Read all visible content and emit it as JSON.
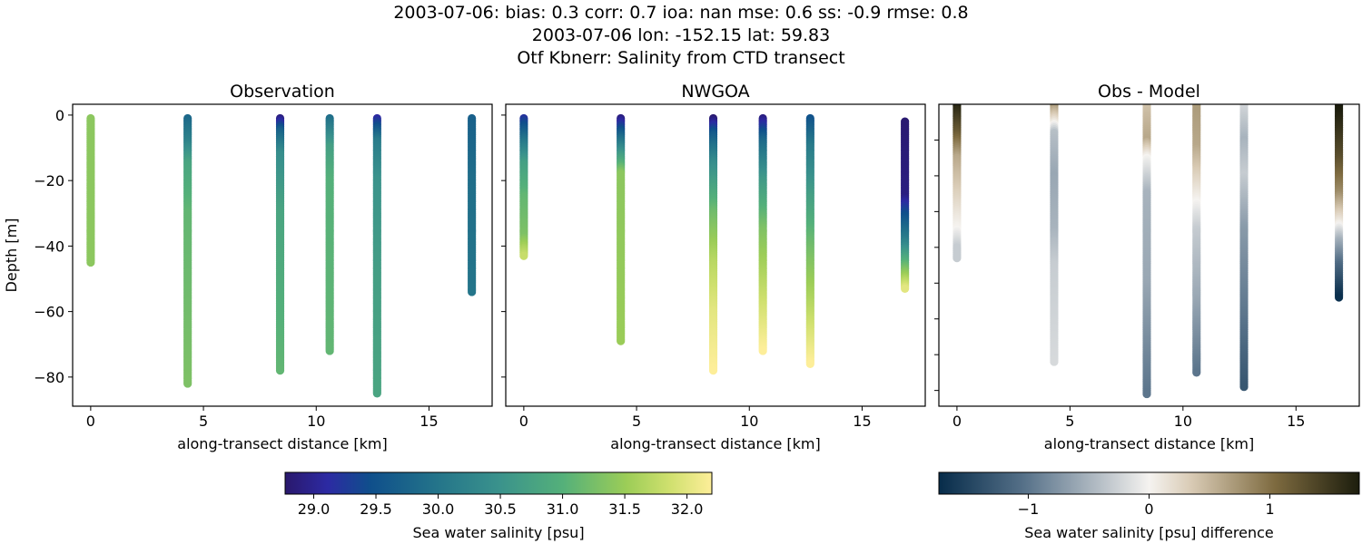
{
  "title_lines": [
    "2003-07-06: bias: 0.3  corr: 0.7  ioa: nan  mse: 0.6  ss: -0.9  rmse: 0.8",
    "2003-07-06 lon: -152.15 lat: 59.83",
    "Otf Kbnerr: Salinity from CTD transect"
  ],
  "chart_data": [
    {
      "type": "scatter",
      "title": "Observation",
      "xlabel": "along-transect distance [km]",
      "ylabel": "Depth [m]",
      "xlim": [
        -0.8,
        17.8
      ],
      "ylim": [
        -88.9,
        3.3
      ],
      "xticks": [
        0,
        5,
        10,
        15
      ],
      "xtick_labels": [
        "0",
        "5",
        "10",
        "15"
      ],
      "yticks": [
        0,
        -20,
        -40,
        -60,
        -80
      ],
      "ytick_labels": [
        "0",
        "−20",
        "−40",
        "−60",
        "−80"
      ],
      "colormap": "haline",
      "profiles": [
        {
          "x": 0,
          "top": -1,
          "bottom": -45,
          "values": [
            [
              -1,
              31.4
            ],
            [
              -45,
              31.4
            ]
          ]
        },
        {
          "x": 4.3,
          "top": -1,
          "bottom": -82,
          "values": [
            [
              -1,
              29.8
            ],
            [
              -8,
              30.2
            ],
            [
              -15,
              30.8
            ],
            [
              -30,
              31.1
            ],
            [
              -82,
              31.3
            ]
          ]
        },
        {
          "x": 8.4,
          "top": -1,
          "bottom": -78,
          "values": [
            [
              -1,
              28.9
            ],
            [
              -5,
              29.7
            ],
            [
              -12,
              30.4
            ],
            [
              -30,
              30.8
            ],
            [
              -78,
              31.1
            ]
          ]
        },
        {
          "x": 10.6,
          "top": -1,
          "bottom": -72,
          "values": [
            [
              -1,
              29.9
            ],
            [
              -10,
              30.7
            ],
            [
              -20,
              31.0
            ],
            [
              -72,
              31.1
            ]
          ]
        },
        {
          "x": 12.7,
          "top": -1,
          "bottom": -85,
          "values": [
            [
              -1,
              29.1
            ],
            [
              -8,
              30.1
            ],
            [
              -20,
              30.5
            ],
            [
              -50,
              30.7
            ],
            [
              -85,
              30.8
            ]
          ]
        },
        {
          "x": 16.9,
          "top": -1,
          "bottom": -54,
          "values": [
            [
              -1,
              29.7
            ],
            [
              -20,
              29.9
            ],
            [
              -54,
              30.0
            ]
          ]
        }
      ]
    },
    {
      "type": "scatter",
      "title": "NWGOA",
      "xlabel": "along-transect distance [km]",
      "xlim": [
        -0.8,
        17.8
      ],
      "ylim": [
        -88.9,
        3.3
      ],
      "xticks": [
        0,
        5,
        10,
        15
      ],
      "xtick_labels": [
        "0",
        "5",
        "10",
        "15"
      ],
      "yticks": [
        0,
        -20,
        -40,
        -60,
        -80
      ],
      "colormap": "haline",
      "profiles": [
        {
          "x": 0,
          "top": -1,
          "bottom": -43,
          "values": [
            [
              -1,
              29.2
            ],
            [
              -8,
              30.0
            ],
            [
              -15,
              30.7
            ],
            [
              -25,
              31.1
            ],
            [
              -37,
              31.3
            ],
            [
              -43,
              31.8
            ]
          ]
        },
        {
          "x": 4.3,
          "top": -1,
          "bottom": -69,
          "values": [
            [
              -1,
              28.9
            ],
            [
              -6,
              29.7
            ],
            [
              -12,
              30.6
            ],
            [
              -18,
              31.4
            ],
            [
              -69,
              31.5
            ]
          ]
        },
        {
          "x": 8.4,
          "top": -1,
          "bottom": -78,
          "values": [
            [
              -1,
              28.8
            ],
            [
              -6,
              29.6
            ],
            [
              -15,
              30.4
            ],
            [
              -30,
              31.2
            ],
            [
              -45,
              31.7
            ],
            [
              -60,
              32.0
            ],
            [
              -78,
              32.2
            ]
          ]
        },
        {
          "x": 10.6,
          "top": -1,
          "bottom": -72,
          "values": [
            [
              -1,
              28.9
            ],
            [
              -8,
              29.8
            ],
            [
              -20,
              30.6
            ],
            [
              -35,
              31.3
            ],
            [
              -55,
              31.8
            ],
            [
              -72,
              32.2
            ]
          ]
        },
        {
          "x": 12.7,
          "top": -1,
          "bottom": -76,
          "values": [
            [
              -1,
              29.5
            ],
            [
              -10,
              30.1
            ],
            [
              -25,
              30.7
            ],
            [
              -40,
              31.2
            ],
            [
              -55,
              31.6
            ],
            [
              -76,
              32.2
            ]
          ]
        },
        {
          "x": 16.9,
          "top": -2,
          "bottom": -53,
          "values": [
            [
              -2,
              28.8
            ],
            [
              -25,
              28.9
            ],
            [
              -30,
              29.4
            ],
            [
              -38,
              30.1
            ],
            [
              -45,
              31.0
            ],
            [
              -53,
              32.0
            ]
          ]
        }
      ]
    },
    {
      "type": "scatter",
      "title": "Obs - Model",
      "xlabel": "along-transect distance [km]",
      "xlim": [
        -0.8,
        17.8
      ],
      "ylim": [
        -84.4,
        0
      ],
      "xticks": [
        0,
        5,
        10,
        15
      ],
      "xtick_labels": [
        "0",
        "5",
        "10",
        "15"
      ],
      "yticks": [
        -10,
        -20,
        -30,
        -40,
        -50,
        -60,
        -70,
        -80
      ],
      "colormap": "diff",
      "profiles": [
        {
          "x": 0,
          "top": 0,
          "bottom": -43,
          "values": [
            [
              0,
              1.7
            ],
            [
              -8,
              1.2
            ],
            [
              -15,
              0.6
            ],
            [
              -25,
              0.3
            ],
            [
              -35,
              0.0
            ],
            [
              -40,
              -0.3
            ],
            [
              -43,
              -0.3
            ]
          ]
        },
        {
          "x": 4.3,
          "top": 0,
          "bottom": -72,
          "values": [
            [
              0,
              0.8
            ],
            [
              -5,
              0.1
            ],
            [
              -8,
              -0.4
            ],
            [
              -20,
              -0.6
            ],
            [
              -35,
              -0.5
            ],
            [
              -45,
              -0.3
            ],
            [
              -72,
              -0.2
            ]
          ]
        },
        {
          "x": 8.4,
          "top": 0,
          "bottom": -81,
          "values": [
            [
              0,
              0.4
            ],
            [
              -10,
              0.6
            ],
            [
              -15,
              0.0
            ],
            [
              -25,
              -0.5
            ],
            [
              -50,
              -0.6
            ],
            [
              -81,
              -1.0
            ]
          ]
        },
        {
          "x": 10.6,
          "top": 0,
          "bottom": -75,
          "values": [
            [
              0,
              0.7
            ],
            [
              -12,
              0.6
            ],
            [
              -25,
              0.1
            ],
            [
              -35,
              -0.3
            ],
            [
              -55,
              -0.6
            ],
            [
              -75,
              -1.0
            ]
          ]
        },
        {
          "x": 12.7,
          "top": 0,
          "bottom": -79,
          "values": [
            [
              0,
              -0.2
            ],
            [
              -10,
              -0.5
            ],
            [
              -20,
              -0.3
            ],
            [
              -35,
              -0.7
            ],
            [
              -60,
              -1.0
            ],
            [
              -79,
              -1.3
            ]
          ]
        },
        {
          "x": 16.9,
          "top": 0,
          "bottom": -54,
          "values": [
            [
              0,
              1.8
            ],
            [
              -15,
              1.3
            ],
            [
              -25,
              0.8
            ],
            [
              -33,
              0.1
            ],
            [
              -38,
              -0.5
            ],
            [
              -45,
              -1.1
            ],
            [
              -54,
              -1.7
            ]
          ]
        }
      ]
    }
  ],
  "colorbars": [
    {
      "label": "Sea water salinity [psu]",
      "range": [
        28.77,
        32.2
      ],
      "ticks": [
        29.0,
        29.5,
        30.0,
        30.5,
        31.0,
        31.5,
        32.0
      ],
      "tick_labels": [
        "29.0",
        "29.5",
        "30.0",
        "30.5",
        "31.0",
        "31.5",
        "32.0"
      ],
      "colormap": "haline"
    },
    {
      "label": "Sea water salinity [psu] difference",
      "range": [
        -1.74,
        1.74
      ],
      "ticks": [
        -1,
        0,
        1
      ],
      "tick_labels": [
        "−1",
        "0",
        "1"
      ],
      "colormap": "diff"
    }
  ],
  "colormaps": {
    "haline": [
      [
        0,
        "#2a186c"
      ],
      [
        0.1,
        "#2c2aa3"
      ],
      [
        0.2,
        "#0f4f8b"
      ],
      [
        0.35,
        "#23738a"
      ],
      [
        0.5,
        "#3a928c"
      ],
      [
        0.65,
        "#54b07a"
      ],
      [
        0.8,
        "#9ccd57"
      ],
      [
        0.9,
        "#cfe06e"
      ],
      [
        1,
        "#fdee99"
      ]
    ],
    "diff": [
      [
        0,
        "#072c4a"
      ],
      [
        0.2,
        "#557088"
      ],
      [
        0.4,
        "#bfc6cc"
      ],
      [
        0.5,
        "#f5f3f0"
      ],
      [
        0.6,
        "#d9cbb5"
      ],
      [
        0.8,
        "#7d6a3f"
      ],
      [
        1,
        "#1c1d0d"
      ]
    ]
  }
}
